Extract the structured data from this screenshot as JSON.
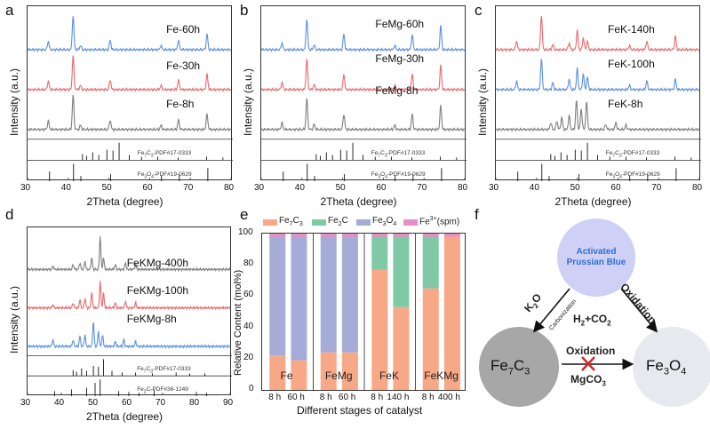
{
  "colors": {
    "gray": "#7f7f7f",
    "red": "#e8696b",
    "blue": "#5b8fdf",
    "fe7c3": "#f7a887",
    "fe2c": "#7fc9a7",
    "fe3o4": "#a5acd8",
    "fe3plus": "#e58fc6",
    "node_prussian": "#cfd0f5",
    "node_prussian_text": "#2f6fd6",
    "node_fe7c3": "#a7a7a7",
    "node_fe3o4": "#e6eaee",
    "cross": "#d02c2c"
  },
  "chart_data": [
    {
      "panel": "a",
      "type": "line",
      "traces": [
        {
          "name": "Fe-60h",
          "color": "blue",
          "peaks": [
            [
              35.1,
              0.25
            ],
            [
              41.2,
              1.0
            ],
            [
              43.0,
              0.12
            ],
            [
              50.3,
              0.28
            ],
            [
              62.8,
              0.12
            ],
            [
              67.1,
              0.28
            ],
            [
              74.1,
              0.45
            ]
          ]
        },
        {
          "name": "Fe-30h",
          "color": "red",
          "peaks": [
            [
              35.1,
              0.25
            ],
            [
              41.2,
              1.0
            ],
            [
              43.0,
              0.12
            ],
            [
              50.3,
              0.28
            ],
            [
              62.8,
              0.12
            ],
            [
              67.1,
              0.28
            ],
            [
              74.1,
              0.45
            ]
          ]
        },
        {
          "name": "Fe-8h",
          "color": "gray",
          "peaks": [
            [
              35.1,
              0.25
            ],
            [
              41.2,
              1.0
            ],
            [
              43.0,
              0.12
            ],
            [
              50.3,
              0.28
            ],
            [
              62.8,
              0.12
            ],
            [
              67.1,
              0.28
            ],
            [
              74.1,
              0.45
            ]
          ]
        }
      ],
      "references": [
        {
          "name": "Fe7C3-PDF#17-0333",
          "sticks": [
            [
              43.5,
              0.35
            ],
            [
              44.5,
              0.25
            ],
            [
              46.0,
              0.45
            ],
            [
              47.5,
              0.3
            ],
            [
              49.5,
              0.6
            ],
            [
              51.0,
              0.55
            ],
            [
              52.5,
              1.0
            ],
            [
              55.0,
              0.3
            ],
            [
              58.0,
              0.2
            ],
            [
              62.0,
              0.2
            ],
            [
              67.0,
              0.15
            ],
            [
              74.0,
              0.2
            ],
            [
              78.0,
              0.15
            ]
          ]
        },
        {
          "name": "Fe3O4-PDF#19-0629",
          "sticks": [
            [
              35.4,
              0.55
            ],
            [
              41.3,
              1.0
            ],
            [
              43.1,
              0.3
            ],
            [
              50.4,
              0.4
            ],
            [
              62.9,
              0.3
            ],
            [
              67.3,
              0.4
            ],
            [
              74.3,
              0.75
            ]
          ]
        }
      ],
      "xlim": [
        30,
        80
      ],
      "xticks": [
        30,
        40,
        50,
        60,
        70,
        80
      ],
      "xlabel": "2Theta (degree)",
      "ylabel": "Intensity (a.u.)"
    },
    {
      "panel": "b",
      "type": "line",
      "traces": [
        {
          "name": "FeMg-60h",
          "color": "blue",
          "peaks": [
            [
              35.1,
              0.2
            ],
            [
              41.2,
              0.9
            ],
            [
              43.0,
              0.15
            ],
            [
              50.3,
              0.45
            ],
            [
              62.8,
              0.12
            ],
            [
              67.1,
              0.45
            ],
            [
              74.1,
              0.7
            ]
          ]
        },
        {
          "name": "FeMg-30h",
          "color": "red",
          "peaks": [
            [
              35.1,
              0.2
            ],
            [
              41.2,
              0.9
            ],
            [
              43.0,
              0.15
            ],
            [
              50.3,
              0.45
            ],
            [
              62.8,
              0.12
            ],
            [
              67.1,
              0.45
            ],
            [
              74.1,
              0.7
            ]
          ]
        },
        {
          "name": "FeMg-8h",
          "color": "gray",
          "peaks": [
            [
              35.1,
              0.2
            ],
            [
              41.2,
              0.9
            ],
            [
              43.0,
              0.15
            ],
            [
              50.3,
              0.45
            ],
            [
              62.8,
              0.12
            ],
            [
              67.1,
              0.45
            ],
            [
              74.1,
              0.7
            ]
          ]
        }
      ],
      "references": [
        {
          "name": "Fe7C3-PDF#17-0333",
          "sticks": [
            [
              43.5,
              0.35
            ],
            [
              44.5,
              0.25
            ],
            [
              46.0,
              0.45
            ],
            [
              47.5,
              0.3
            ],
            [
              49.5,
              0.6
            ],
            [
              51.0,
              0.55
            ],
            [
              52.5,
              1.0
            ],
            [
              55.0,
              0.3
            ],
            [
              58.0,
              0.2
            ],
            [
              62.0,
              0.2
            ],
            [
              67.0,
              0.15
            ],
            [
              74.0,
              0.2
            ],
            [
              78.0,
              0.15
            ]
          ]
        },
        {
          "name": "Fe3O4-PDF#19-0629",
          "sticks": [
            [
              35.4,
              0.55
            ],
            [
              41.3,
              1.0
            ],
            [
              43.1,
              0.3
            ],
            [
              50.4,
              0.4
            ],
            [
              62.9,
              0.3
            ],
            [
              67.3,
              0.4
            ],
            [
              74.3,
              0.75
            ]
          ]
        }
      ],
      "xlim": [
        30,
        80
      ],
      "xticks": [
        30,
        40,
        50,
        60,
        70,
        80
      ],
      "xlabel": "2Theta (degree)",
      "ylabel": "Intensity (a.u.)"
    },
    {
      "panel": "c",
      "type": "line",
      "traces": [
        {
          "name": "FeK-140h",
          "color": "red",
          "peaks": [
            [
              35.1,
              0.25
            ],
            [
              41.2,
              1.0
            ],
            [
              44.0,
              0.15
            ],
            [
              48.0,
              0.2
            ],
            [
              50.0,
              0.55
            ],
            [
              51.5,
              0.35
            ],
            [
              52.5,
              0.25
            ],
            [
              62.8,
              0.12
            ],
            [
              67.1,
              0.25
            ],
            [
              74.1,
              0.4
            ]
          ]
        },
        {
          "name": "FeK-100h",
          "color": "blue",
          "peaks": [
            [
              35.1,
              0.25
            ],
            [
              41.2,
              0.9
            ],
            [
              44.0,
              0.2
            ],
            [
              48.0,
              0.3
            ],
            [
              50.0,
              0.6
            ],
            [
              51.5,
              0.45
            ],
            [
              52.5,
              0.35
            ],
            [
              62.8,
              0.12
            ],
            [
              67.1,
              0.25
            ],
            [
              74.1,
              0.3
            ]
          ]
        },
        {
          "name": "FeK-8h",
          "color": "gray",
          "peaks": [
            [
              43.5,
              0.2
            ],
            [
              45.0,
              0.25
            ],
            [
              46.2,
              0.35
            ],
            [
              48.0,
              0.4
            ],
            [
              49.8,
              0.85
            ],
            [
              51.0,
              0.6
            ],
            [
              52.3,
              0.8
            ],
            [
              57.0,
              0.15
            ],
            [
              59.5,
              0.2
            ],
            [
              62.0,
              0.12
            ]
          ]
        }
      ],
      "references": [
        {
          "name": "Fe7C3-PDF#17-0333",
          "sticks": [
            [
              43.5,
              0.35
            ],
            [
              44.5,
              0.25
            ],
            [
              46.0,
              0.45
            ],
            [
              47.5,
              0.3
            ],
            [
              49.5,
              0.6
            ],
            [
              51.0,
              0.55
            ],
            [
              52.5,
              1.0
            ],
            [
              55.0,
              0.3
            ],
            [
              58.0,
              0.2
            ],
            [
              62.0,
              0.2
            ],
            [
              67.0,
              0.15
            ],
            [
              74.0,
              0.2
            ],
            [
              78.0,
              0.15
            ]
          ]
        },
        {
          "name": "Fe3O4-PDF#19-0629",
          "sticks": [
            [
              35.4,
              0.55
            ],
            [
              41.3,
              1.0
            ],
            [
              43.1,
              0.3
            ],
            [
              50.4,
              0.4
            ],
            [
              62.9,
              0.3
            ],
            [
              67.3,
              0.4
            ],
            [
              74.3,
              0.75
            ]
          ]
        }
      ],
      "xlim": [
        30,
        80
      ],
      "xticks": [
        30,
        40,
        50,
        60,
        70,
        80
      ],
      "xlabel": "2Theta (degree)",
      "ylabel": "Intensity (a.u.)"
    },
    {
      "panel": "d",
      "type": "line",
      "traces": [
        {
          "name": "FeKMg-400h",
          "color": "gray",
          "peaks": [
            [
              37.5,
              0.1
            ],
            [
              43.5,
              0.15
            ],
            [
              45.5,
              0.2
            ],
            [
              47.0,
              0.25
            ],
            [
              49.0,
              0.35
            ],
            [
              51.5,
              1.0
            ],
            [
              52.5,
              0.35
            ],
            [
              56.0,
              0.15
            ],
            [
              59.0,
              0.2
            ],
            [
              62.0,
              0.15
            ]
          ]
        },
        {
          "name": "FeKMg-100h",
          "color": "red",
          "peaks": [
            [
              37.5,
              0.1
            ],
            [
              43.5,
              0.15
            ],
            [
              45.5,
              0.25
            ],
            [
              47.0,
              0.3
            ],
            [
              49.0,
              0.45
            ],
            [
              51.5,
              0.8
            ],
            [
              52.5,
              0.45
            ],
            [
              56.0,
              0.15
            ],
            [
              59.0,
              0.2
            ],
            [
              62.0,
              0.15
            ]
          ]
        },
        {
          "name": "FeKMg-8h",
          "color": "blue",
          "peaks": [
            [
              37.5,
              0.2
            ],
            [
              43.5,
              0.2
            ],
            [
              45.5,
              0.3
            ],
            [
              47.0,
              0.35
            ],
            [
              49.5,
              0.75
            ],
            [
              51.0,
              0.45
            ],
            [
              52.2,
              0.35
            ],
            [
              56.0,
              0.15
            ],
            [
              58.5,
              0.2
            ],
            [
              62.0,
              0.15
            ]
          ]
        }
      ],
      "references": [
        {
          "name": "Fe7C3-PDF#17-0333",
          "sticks": [
            [
              43.5,
              0.35
            ],
            [
              44.5,
              0.25
            ],
            [
              46.0,
              0.45
            ],
            [
              47.5,
              0.3
            ],
            [
              49.5,
              0.6
            ],
            [
              51.0,
              0.55
            ],
            [
              52.5,
              1.0
            ],
            [
              55.0,
              0.3
            ],
            [
              58.0,
              0.2
            ],
            [
              62.0,
              0.2
            ],
            [
              67.0,
              0.15
            ],
            [
              74.0,
              0.2
            ],
            [
              78.0,
              0.15
            ],
            [
              82.5,
              0.15
            ]
          ]
        },
        {
          "name": "Fe2C-PDF#36-1249",
          "sticks": [
            [
              38.0,
              0.3
            ],
            [
              43.0,
              0.4
            ],
            [
              47.5,
              0.5
            ],
            [
              50.0,
              0.8
            ],
            [
              51.5,
              1.0
            ],
            [
              57.0,
              0.3
            ],
            [
              60.0,
              0.25
            ],
            [
              63.0,
              0.2
            ],
            [
              67.5,
              0.35
            ],
            [
              80.0,
              0.25
            ],
            [
              83.0,
              0.2
            ]
          ]
        }
      ],
      "xlim": [
        30,
        90
      ],
      "xticks": [
        30,
        40,
        50,
        60,
        70,
        80,
        90
      ],
      "xlabel": "2Theta (degree)",
      "ylabel": "Intensity (a.u.)"
    },
    {
      "panel": "e",
      "type": "bar",
      "stacked": true,
      "legend": [
        "Fe7C3",
        "Fe2C",
        "Fe3O4",
        "Fe3+(spm)"
      ],
      "groups": [
        "Fe",
        "FeMg",
        "FeK",
        "FeKMg"
      ],
      "categories": [
        "8 h",
        "60 h",
        "8 h",
        "60 h",
        "8 h",
        "140 h",
        "8 h",
        "400 h"
      ],
      "series": [
        {
          "name": "Fe7C3",
          "color": "fe7c3",
          "values": [
            22,
            19,
            24,
            24,
            77,
            53,
            65,
            98
          ]
        },
        {
          "name": "Fe2C",
          "color": "fe2c",
          "values": [
            0,
            0,
            0,
            0,
            21,
            45,
            33,
            0
          ]
        },
        {
          "name": "Fe3O4",
          "color": "fe3o4",
          "values": [
            76,
            79,
            74,
            74,
            0,
            0,
            0,
            0
          ]
        },
        {
          "name": "Fe3+(spm)",
          "color": "fe3plus",
          "values": [
            2,
            2,
            2,
            2,
            2,
            2,
            2,
            2
          ]
        }
      ],
      "ylim": [
        0,
        100
      ],
      "yticks": [
        0,
        20,
        40,
        60,
        80,
        100
      ],
      "xlabel": "Different stages of catalyst",
      "ylabel": "Relative Content (mol%)"
    }
  ],
  "panels": {
    "a": "a",
    "b": "b",
    "c": "c",
    "d": "d",
    "e": "e",
    "f": "f"
  },
  "legend_text": {
    "fe7c3": {
      "base": "Fe",
      "sub": "7",
      "mid": "C",
      "sub2": "3"
    },
    "fe2c": {
      "base": "Fe",
      "sub": "2",
      "mid": "C",
      "sub2": ""
    },
    "fe3o4": {
      "base": "Fe",
      "sub": "3",
      "mid": "O",
      "sub2": "4"
    },
    "fe3plus": {
      "base": "Fe",
      "sup": "3+",
      "tail": "(spm)"
    }
  },
  "diagram": {
    "node_top_line1": "Activated",
    "node_top_line2": "Prussian Blue",
    "node_left": {
      "base": "Fe",
      "sub": "7",
      "mid": "C",
      "sub2": "3"
    },
    "node_right": {
      "base": "Fe",
      "sub": "3",
      "mid": "O",
      "sub2": "4"
    },
    "left_arrow_label": {
      "base": "K",
      "sub": "2",
      "mid": "O"
    },
    "left_arrow_sublabel": "Carbonization",
    "right_arrow_label": "Oxidation",
    "center_label": {
      "a": "H",
      "a_sub": "2",
      "b": "+CO",
      "b_sub": "2"
    },
    "bottom_arrow_label": "Oxidation",
    "bottom_arrow_sublabel": {
      "base": "MgCO",
      "sub": "3"
    }
  }
}
